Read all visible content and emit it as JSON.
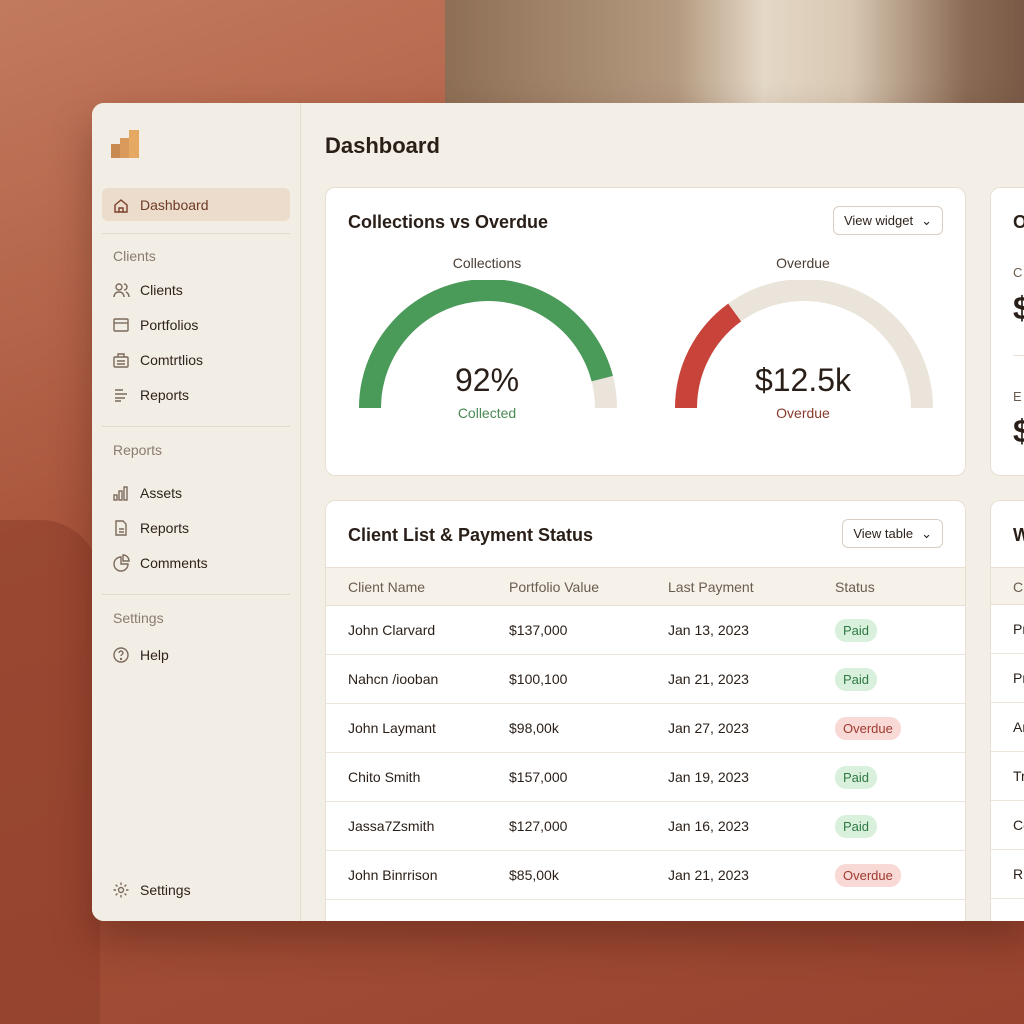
{
  "sidebar": {
    "items": [
      {
        "label": "Dashboard",
        "icon": "home-icon"
      },
      {
        "section": "Clients"
      },
      {
        "label": "Clients",
        "icon": "users-icon"
      },
      {
        "label": "Portfolios",
        "icon": "folder-icon"
      },
      {
        "label": "Comtrtlios",
        "icon": "briefcase-icon"
      },
      {
        "label": "Reports",
        "icon": "list-icon"
      },
      {
        "section": "Reports"
      },
      {
        "label": "Assets",
        "icon": "bar-chart-icon"
      },
      {
        "label": "Reports",
        "icon": "document-icon"
      },
      {
        "label": "Comments",
        "icon": "pie-chart-icon"
      },
      {
        "section": "Settings"
      },
      {
        "label": "Help",
        "icon": "help-icon"
      },
      {
        "label": "Settings",
        "icon": "gear-icon"
      }
    ]
  },
  "header": {
    "title": "Dashboard"
  },
  "collections": {
    "title": "Collections vs Overdue",
    "button": "View widget",
    "gauge1": {
      "label": "Collections",
      "value": "92%",
      "sub": "Collected",
      "fraction": 0.92,
      "color": "#4a9a5a"
    },
    "gauge2": {
      "label": "Overdue",
      "value": "$12.5k",
      "sub": "Overdue",
      "fraction": 0.3,
      "color": "#c8443a"
    }
  },
  "clients": {
    "title": "Client List & Payment Status",
    "button": "View table",
    "columns": [
      "Client Name",
      "Portfolio Value",
      "Last Payment",
      "Status"
    ],
    "rows": [
      [
        "John Clarvard",
        "$137,000",
        "Jan 13, 2023",
        "Paid"
      ],
      [
        "Nahcn /iooban",
        "$100,100",
        "Jan 21, 2023",
        "Paid"
      ],
      [
        "John Laymant",
        "$98,00k",
        "Jan 27, 2023",
        "Overdue"
      ],
      [
        "Chito Smith",
        "$157,000",
        "Jan 19, 2023",
        "Paid"
      ],
      [
        "Jassa7Zsmith",
        "$127,000",
        "Jan 16, 2023",
        "Paid"
      ],
      [
        "John Binrrison",
        "$85,00k",
        "Jan 21, 2023",
        "Overdue"
      ]
    ]
  },
  "right_card": {
    "title": "O",
    "label1": "C",
    "value1": "$",
    "label2": "E",
    "value2": "$"
  },
  "right_card2": {
    "title": "W",
    "col": "Cl",
    "rows": [
      "Pr",
      "Pr",
      "Ar",
      "Tr",
      "Co",
      "Ru"
    ]
  }
}
